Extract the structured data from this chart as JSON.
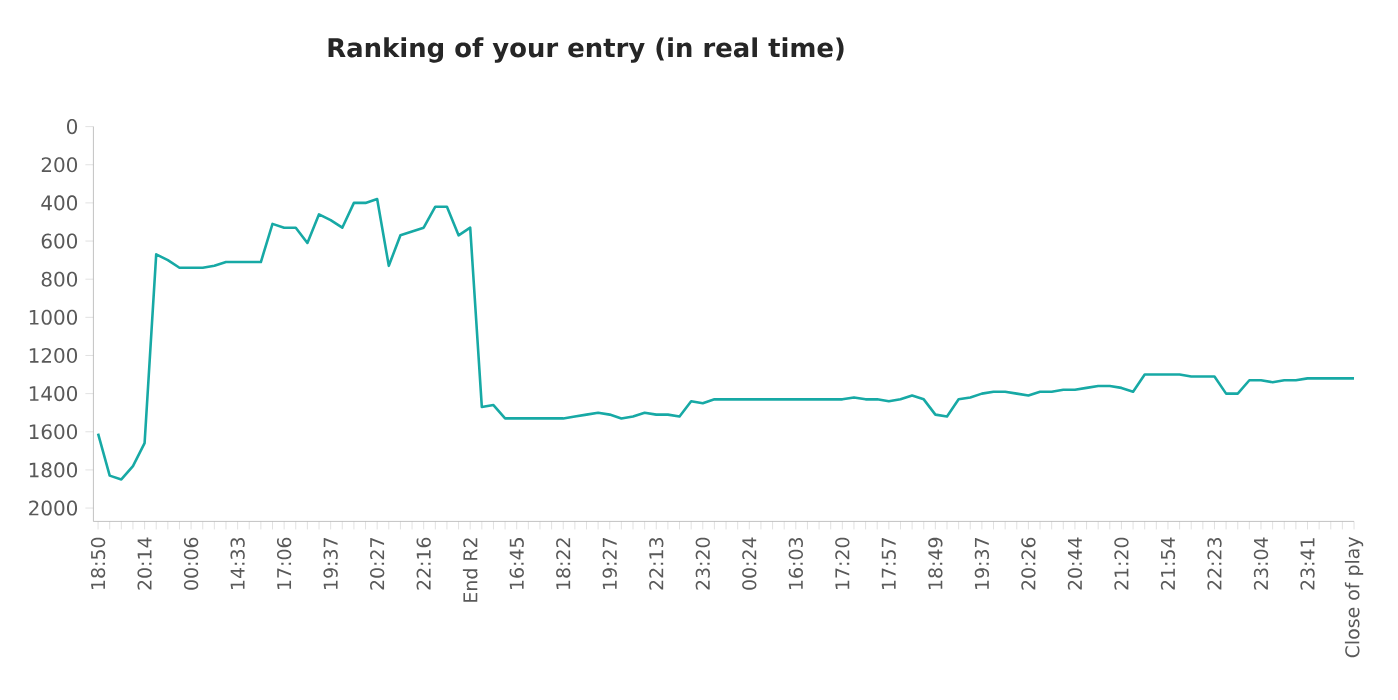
{
  "chart_data": {
    "type": "line",
    "title": "Ranking of your entry (in real time)",
    "categories": [
      "18:50",
      null,
      null,
      null,
      "20:14",
      null,
      null,
      null,
      "00:06",
      null,
      null,
      null,
      "14:33",
      null,
      null,
      null,
      "17:06",
      null,
      null,
      null,
      "19:37",
      null,
      null,
      null,
      "20:27",
      null,
      null,
      null,
      "22:16",
      null,
      null,
      null,
      "End R2",
      null,
      null,
      null,
      "16:45",
      null,
      null,
      null,
      "18:22",
      null,
      null,
      null,
      "19:27",
      null,
      null,
      null,
      "22:13",
      null,
      null,
      null,
      "23:20",
      null,
      null,
      null,
      "00:24",
      null,
      null,
      null,
      "16:03",
      null,
      null,
      null,
      "17:20",
      null,
      null,
      null,
      "17:57",
      null,
      null,
      null,
      "18:49",
      null,
      null,
      null,
      "19:37",
      null,
      null,
      null,
      "20:26",
      null,
      null,
      null,
      "20:44",
      null,
      null,
      null,
      "21:20",
      null,
      null,
      null,
      "21:54",
      null,
      null,
      null,
      "22:23",
      null,
      null,
      null,
      "23:04",
      null,
      null,
      null,
      "23:41",
      null,
      null,
      null,
      "Close of play"
    ],
    "values": [
      1610,
      1830,
      1850,
      1780,
      1660,
      670,
      700,
      740,
      740,
      740,
      730,
      710,
      710,
      710,
      710,
      510,
      530,
      530,
      610,
      460,
      490,
      530,
      400,
      400,
      380,
      730,
      570,
      550,
      530,
      420,
      420,
      570,
      530,
      1470,
      1460,
      1530,
      1530,
      1530,
      1530,
      1530,
      1530,
      1520,
      1510,
      1500,
      1510,
      1530,
      1520,
      1500,
      1510,
      1510,
      1520,
      1440,
      1450,
      1430,
      1430,
      1430,
      1430,
      1430,
      1430,
      1430,
      1430,
      1430,
      1430,
      1430,
      1430,
      1420,
      1430,
      1430,
      1440,
      1430,
      1410,
      1430,
      1510,
      1520,
      1430,
      1420,
      1400,
      1390,
      1390,
      1400,
      1410,
      1390,
      1390,
      1380,
      1380,
      1370,
      1360,
      1360,
      1370,
      1390,
      1300,
      1300,
      1300,
      1300,
      1310,
      1310,
      1310,
      1400,
      1400,
      1330,
      1330,
      1340,
      1330,
      1330,
      1320,
      1320,
      1320,
      1320,
      1320
    ],
    "color": "#17a9a5",
    "ylim": [
      2070,
      0
    ],
    "yticks": [
      0,
      200,
      400,
      600,
      800,
      1000,
      1200,
      1400,
      1600,
      1800,
      2000
    ],
    "grid": false,
    "marker": "none",
    "line_style": "solid"
  }
}
